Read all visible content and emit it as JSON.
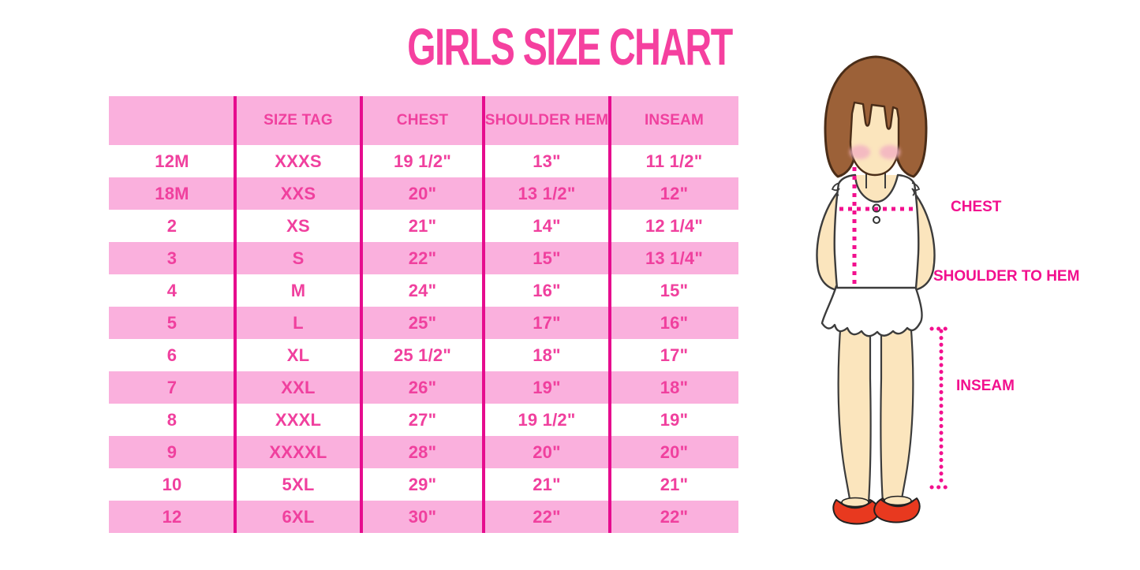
{
  "title": "GIRLS SIZE CHART",
  "chart_data": {
    "type": "table",
    "title": "GIRLS SIZE CHART",
    "columns": [
      "",
      "SIZE TAG",
      "CHEST",
      "SHOULDER HEM",
      "INSEAM"
    ],
    "rows": [
      [
        "12M",
        "XXXS",
        "19 1/2\"",
        "13\"",
        "11 1/2\""
      ],
      [
        "18M",
        "XXS",
        "20\"",
        "13 1/2\"",
        "12\""
      ],
      [
        "2",
        "XS",
        "21\"",
        "14\"",
        "12 1/4\""
      ],
      [
        "3",
        "S",
        "22\"",
        "15\"",
        "13 1/4\""
      ],
      [
        "4",
        "M",
        "24\"",
        "16\"",
        "15\""
      ],
      [
        "5",
        "L",
        "25\"",
        "17\"",
        "16\""
      ],
      [
        "6",
        "XL",
        "25 1/2\"",
        "18\"",
        "17\""
      ],
      [
        "7",
        "XXL",
        "26\"",
        "19\"",
        "18\""
      ],
      [
        "8",
        "XXXL",
        "27\"",
        "19 1/2\"",
        "19\""
      ],
      [
        "9",
        "XXXXL",
        "28\"",
        "20\"",
        "20\""
      ],
      [
        "10",
        "5XL",
        "29\"",
        "21\"",
        "21\""
      ],
      [
        "12",
        "6XL",
        "30\"",
        "22\"",
        "22\""
      ]
    ],
    "layout": {
      "row_striping": [
        "white",
        "pink"
      ],
      "gridlines": "vertical-only",
      "legend": "none"
    }
  },
  "diagram": {
    "chest_label": "CHEST",
    "shoulder_to_hem_label": "SHOULDER TO HEM",
    "inseam_label": "INSEAM"
  },
  "colors": {
    "title_pink": "#F5409F",
    "row_band_pink": "#FAB0DD",
    "divider_magenta": "#E60C8E",
    "table_text_pink": "#F0409E",
    "label_magenta": "#F2108E",
    "hair_brown": "#9C6138",
    "skin_tone": "#FBE5BD",
    "shoe_red": "#E8391F"
  }
}
